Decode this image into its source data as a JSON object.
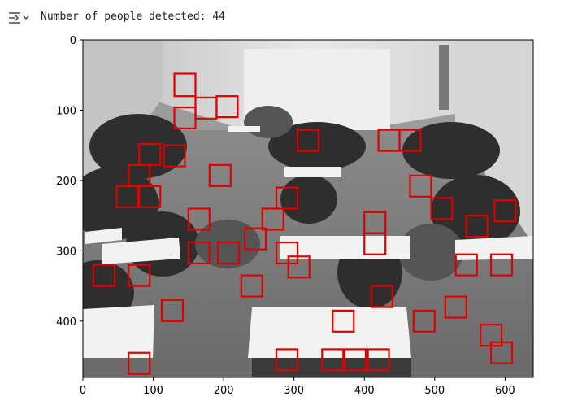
{
  "output": {
    "icon": "output-collapse-icon",
    "text": "Number of people detected: 44"
  },
  "plot": {
    "image_width": 640,
    "image_height": 480,
    "x_ticks": [
      0,
      100,
      200,
      300,
      400,
      500,
      600
    ],
    "y_ticks": [
      0,
      100,
      200,
      300,
      400
    ],
    "box_color": "#e00000",
    "image_description": "grayscale classroom photo"
  },
  "chart_data": {
    "type": "scatter",
    "title": "",
    "xlabel": "",
    "ylabel": "",
    "xlim": [
      0,
      640
    ],
    "ylim": [
      480,
      0
    ],
    "grid": false,
    "detections": [
      [
        130,
        48,
        160,
        80
      ],
      [
        130,
        96,
        160,
        126
      ],
      [
        160,
        82,
        190,
        112
      ],
      [
        190,
        80,
        220,
        110
      ],
      [
        80,
        148,
        110,
        178
      ],
      [
        115,
        150,
        145,
        180
      ],
      [
        65,
        178,
        95,
        208
      ],
      [
        180,
        178,
        210,
        208
      ],
      [
        48,
        208,
        78,
        238
      ],
      [
        80,
        208,
        110,
        238
      ],
      [
        150,
        240,
        180,
        270
      ],
      [
        150,
        288,
        180,
        318
      ],
      [
        192,
        288,
        222,
        318
      ],
      [
        15,
        320,
        45,
        350
      ],
      [
        65,
        320,
        95,
        350
      ],
      [
        112,
        370,
        142,
        400
      ],
      [
        65,
        445,
        95,
        475
      ],
      [
        230,
        268,
        260,
        298
      ],
      [
        255,
        240,
        285,
        270
      ],
      [
        275,
        210,
        305,
        240
      ],
      [
        275,
        288,
        305,
        318
      ],
      [
        292,
        308,
        322,
        338
      ],
      [
        225,
        335,
        255,
        365
      ],
      [
        305,
        128,
        335,
        158
      ],
      [
        420,
        128,
        450,
        158
      ],
      [
        450,
        128,
        480,
        158
      ],
      [
        465,
        193,
        495,
        223
      ],
      [
        495,
        225,
        525,
        255
      ],
      [
        400,
        245,
        430,
        275
      ],
      [
        400,
        275,
        430,
        305
      ],
      [
        410,
        350,
        440,
        380
      ],
      [
        355,
        385,
        385,
        415
      ],
      [
        470,
        385,
        500,
        415
      ],
      [
        515,
        365,
        545,
        395
      ],
      [
        530,
        305,
        560,
        335
      ],
      [
        545,
        250,
        575,
        280
      ],
      [
        585,
        228,
        615,
        258
      ],
      [
        580,
        305,
        610,
        335
      ],
      [
        565,
        405,
        595,
        435
      ],
      [
        580,
        430,
        610,
        460
      ],
      [
        275,
        440,
        305,
        470
      ],
      [
        340,
        440,
        370,
        470
      ],
      [
        372,
        440,
        402,
        470
      ],
      [
        405,
        440,
        435,
        470
      ]
    ]
  }
}
